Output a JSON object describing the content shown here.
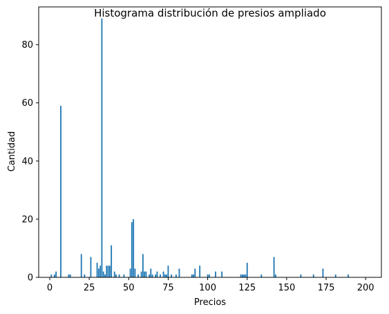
{
  "chart_data": {
    "type": "bar",
    "title": "Histograma distribución de presios ampliado",
    "xlabel": "Precios",
    "ylabel": "Cantidad",
    "xlim": [
      -7,
      210
    ],
    "ylim": [
      0,
      93
    ],
    "xticks": [
      0,
      25,
      50,
      75,
      100,
      125,
      150,
      175,
      200
    ],
    "yticks": [
      0,
      20,
      40,
      60,
      80
    ],
    "bar_color": "#1f77b4",
    "bar_width": 0.8,
    "grid": false,
    "legend": "none",
    "x": [
      1,
      3,
      4,
      7,
      12,
      13,
      20,
      22,
      26,
      30,
      31,
      32,
      33,
      34,
      35,
      36,
      37,
      38,
      39,
      41,
      42,
      44,
      47,
      51,
      52,
      53,
      54,
      56,
      58,
      59,
      60,
      61,
      63,
      64,
      65,
      67,
      68,
      70,
      72,
      73,
      74,
      75,
      77,
      80,
      82,
      90,
      91,
      92,
      95,
      100,
      101,
      105,
      109,
      121,
      122,
      123,
      124,
      125,
      134,
      142,
      143,
      159,
      167,
      173,
      181,
      189
    ],
    "values": [
      1,
      1,
      2,
      59,
      1,
      1,
      8,
      1,
      7,
      5,
      3,
      4,
      89,
      2,
      1,
      4,
      4,
      4,
      11,
      2,
      1,
      1,
      1,
      3,
      19,
      20,
      3,
      1,
      2,
      8,
      2,
      2,
      1,
      3,
      1,
      1,
      2,
      1,
      2,
      1,
      1,
      4,
      1,
      1,
      3,
      1,
      1,
      3,
      4,
      1,
      1,
      2,
      2,
      1,
      1,
      1,
      1,
      5,
      1,
      7,
      1,
      1,
      1,
      3,
      1,
      1
    ]
  }
}
